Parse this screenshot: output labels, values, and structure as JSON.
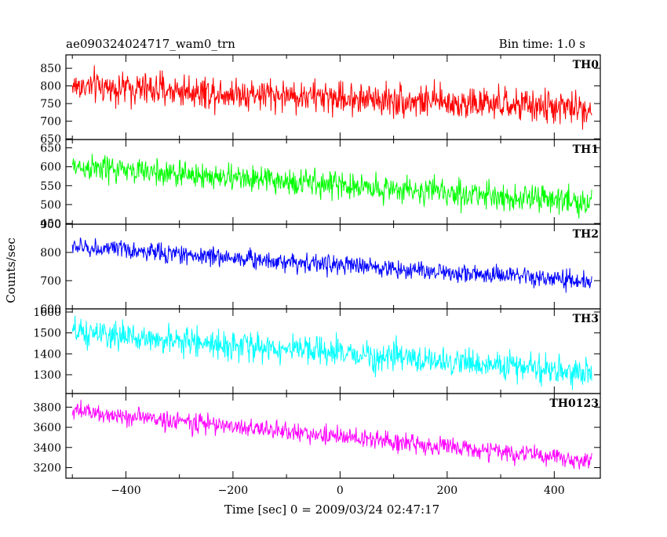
{
  "header": {
    "title": "ae090324024717_wam0_trn",
    "bin_time": "Bin time: 1.0 s"
  },
  "chart_data": {
    "type": "line",
    "title": "ae090324024717_wam0_trn",
    "subtitle": "Bin time: 1.0 s",
    "xlabel": "Time [sec] 0 = 2009/03/24 02:47:17",
    "ylabel": "Counts/sec",
    "xlim": [
      -512,
      486
    ],
    "x_range": [
      -500,
      470
    ],
    "x_ticks": [
      -400,
      -200,
      0,
      200,
      400
    ],
    "grid": false,
    "panels": [
      {
        "name": "TH0",
        "color": "#ff0000",
        "ylim": [
          648,
          888
        ],
        "y_ticks": [
          650,
          700,
          750,
          800,
          850
        ],
        "trend_start": 800,
        "trend_end": 735,
        "noise_amplitude": 42
      },
      {
        "name": "TH1",
        "color": "#00ff00",
        "ylim": [
          448,
          672
        ],
        "y_ticks": [
          450,
          500,
          550,
          600,
          650
        ],
        "trend_start": 600,
        "trend_end": 505,
        "noise_amplitude": 32
      },
      {
        "name": "TH2",
        "color": "#0000ff",
        "ylim": [
          600,
          900
        ],
        "y_ticks": [
          600,
          700,
          800,
          900
        ],
        "trend_start": 820,
        "trend_end": 695,
        "noise_amplitude": 30
      },
      {
        "name": "TH3",
        "color": "#00ffff",
        "ylim": [
          1210,
          1615
        ],
        "y_ticks": [
          1300,
          1400,
          1500,
          1600
        ],
        "trend_start": 1500,
        "trend_end": 1310,
        "noise_amplitude": 60
      },
      {
        "name": "TH0123",
        "color": "#ff00ff",
        "ylim": [
          3095,
          3935
        ],
        "y_ticks": [
          3200,
          3400,
          3600,
          3800
        ],
        "trend_start": 3760,
        "trend_end": 3270,
        "noise_amplitude": 85
      }
    ]
  }
}
